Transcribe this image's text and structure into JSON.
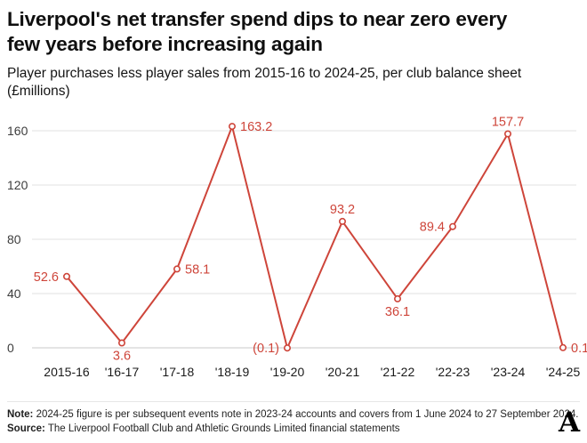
{
  "header": {
    "title": "Liverpool's net transfer spend dips to near zero every\nfew years before increasing again",
    "subtitle": "Player purchases less player sales from 2015-16 to 2024-25, per club balance sheet\n(£millions)"
  },
  "chart_data": {
    "type": "line",
    "title": "Liverpool's net transfer spend dips to near zero every few years before increasing again",
    "subtitle": "Player purchases less player sales from 2015-16 to 2024-25, per club balance sheet (£millions)",
    "categories": [
      "2015-16",
      "'16-17",
      "'17-18",
      "'18-19",
      "'19-20",
      "'20-21",
      "'21-22",
      "'22-23",
      "'23-24",
      "'24-25"
    ],
    "values": [
      52.6,
      3.6,
      58.1,
      163.2,
      -0.1,
      93.2,
      36.1,
      89.4,
      157.7,
      0.1
    ],
    "point_labels": [
      "52.6",
      "3.6",
      "58.1",
      "163.2",
      "(0.1)",
      "93.2",
      "36.1",
      "89.4",
      "157.7",
      "0.1"
    ],
    "point_label_positions": [
      "left",
      "below",
      "right",
      "right",
      "left",
      "above",
      "below",
      "left",
      "above",
      "right"
    ],
    "yticks": [
      0,
      40,
      80,
      120,
      160
    ],
    "ylim": [
      -5,
      170
    ],
    "xlabel": "",
    "ylabel": "£millions",
    "grid": true,
    "legend": false,
    "marker": "open-circle",
    "line_color": "#ce453a",
    "grid_color": "#e0e0e0",
    "zero_line_color": "#c9c9c9"
  },
  "footer": {
    "note_label": "Note:",
    "note_text": "2024-25 figure is per subsequent events note in 2023-24 accounts and covers from 1 June 2024 to 27 September 2024.",
    "source_label": "Source:",
    "source_text": "The Liverpool Football Club and Athletic Grounds Limited financial statements",
    "logo_letter": "A"
  }
}
